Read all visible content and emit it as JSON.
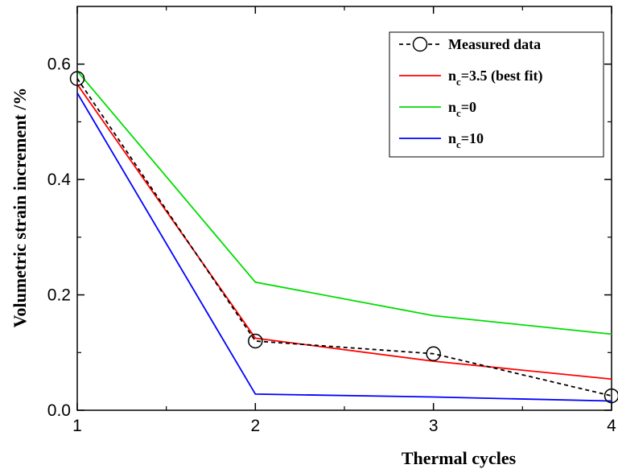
{
  "chart_data": {
    "type": "line",
    "xlabel": "Thermal cycles",
    "ylabel": "Volumetric strain increment /%",
    "xlim": [
      1,
      4
    ],
    "ylim": [
      0,
      0.7
    ],
    "x_ticks": [
      1,
      2,
      3,
      4
    ],
    "y_ticks": [
      0.0,
      0.2,
      0.4,
      0.6
    ],
    "x_tick_labels": [
      "1",
      "2",
      "3",
      "4"
    ],
    "y_tick_labels": [
      "0.0",
      "0.2",
      "0.4",
      "0.6"
    ],
    "grid": false,
    "legend_position": "top-right",
    "series": [
      {
        "name": "Measured data",
        "color": "#000000",
        "style": "dashed",
        "marker": "open-circle",
        "x": [
          1,
          2,
          3,
          4
        ],
        "y": [
          0.575,
          0.12,
          0.098,
          0.025
        ]
      },
      {
        "name": "n_c=3.5 (best fit)",
        "color": "#ff0000",
        "style": "solid",
        "marker": "none",
        "x": [
          1,
          2,
          3,
          4
        ],
        "y": [
          0.565,
          0.125,
          0.085,
          0.054
        ]
      },
      {
        "name": "n_c=0",
        "color": "#00dd00",
        "style": "solid",
        "marker": "none",
        "x": [
          1,
          2,
          3,
          4
        ],
        "y": [
          0.588,
          0.222,
          0.164,
          0.132
        ]
      },
      {
        "name": "n_c=10",
        "color": "#0000ff",
        "style": "solid",
        "marker": "none",
        "x": [
          1,
          2,
          3,
          4
        ],
        "y": [
          0.55,
          0.028,
          0.023,
          0.016
        ]
      }
    ],
    "legend": [
      {
        "main": "Measured data",
        "sub": "",
        "rest": ""
      },
      {
        "main": "n",
        "sub": "c",
        "rest": "=3.5 (best fit)"
      },
      {
        "main": "n",
        "sub": "c",
        "rest": "=0"
      },
      {
        "main": "n",
        "sub": "c",
        "rest": "=10"
      }
    ]
  }
}
